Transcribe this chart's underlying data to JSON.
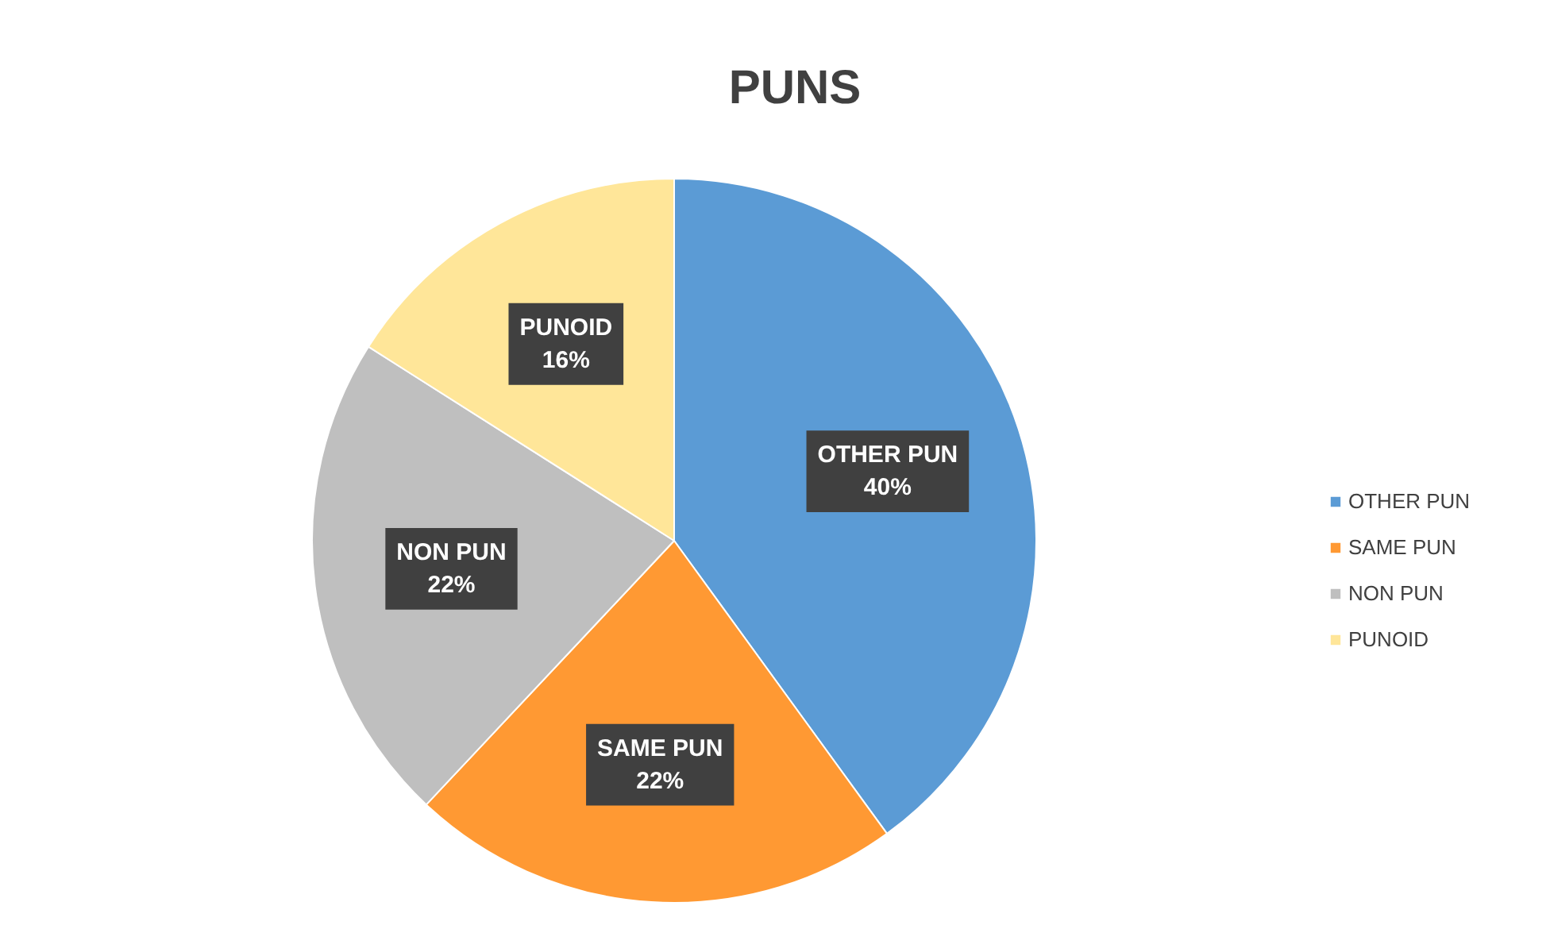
{
  "chart_data": {
    "type": "pie",
    "title": "PUNS",
    "categories": [
      "OTHER PUN",
      "SAME PUN",
      "NON PUN",
      "PUNOID"
    ],
    "values": [
      40,
      22,
      22,
      16
    ],
    "colors": [
      "#5b9bd5",
      "#ff9933",
      "#bfbfbf",
      "#ffe699"
    ],
    "value_labels": [
      "40%",
      "22%",
      "22%",
      "16%"
    ],
    "legend": "right"
  }
}
